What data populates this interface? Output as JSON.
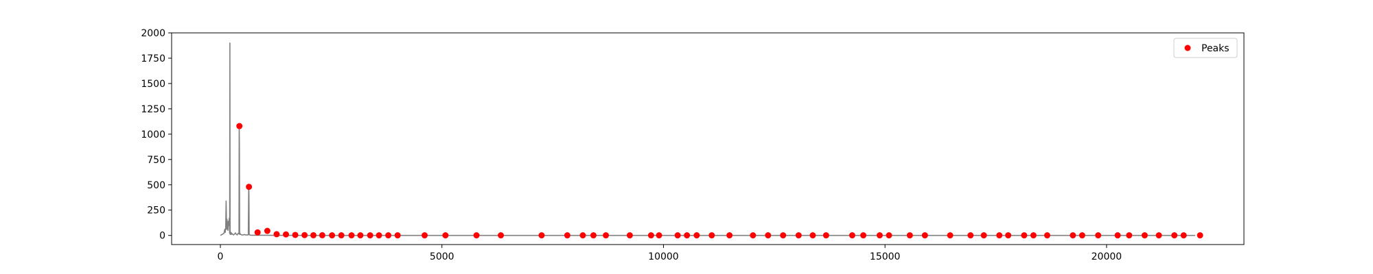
{
  "chart_data": {
    "type": "line",
    "xlim": [
      -1100,
      23100
    ],
    "ylim": [
      -90,
      2000
    ],
    "x_ticks": [
      0,
      5000,
      10000,
      15000,
      20000
    ],
    "y_ticks": [
      0,
      250,
      500,
      750,
      1000,
      1250,
      1500,
      1750,
      2000
    ],
    "grid": false,
    "legend_position": "top-right",
    "series": [
      {
        "kind": "line",
        "color": "#808080",
        "x": [
          0,
          40,
          80,
          100,
          110,
          120,
          130,
          140,
          150,
          160,
          170,
          180,
          190,
          200,
          210,
          215,
          220,
          225,
          230,
          240,
          250,
          260,
          270,
          280,
          300,
          320,
          340,
          360,
          380,
          400,
          420,
          425,
          430,
          435,
          440,
          445,
          450,
          460,
          480,
          500,
          520,
          540,
          560,
          580,
          600,
          630,
          640,
          645,
          650,
          655,
          660,
          680,
          700,
          800,
          1000,
          1200,
          1500,
          2000,
          4000,
          8000,
          12000,
          16000,
          20000,
          22000
        ],
        "y": [
          0,
          10,
          20,
          60,
          30,
          80,
          340,
          60,
          160,
          90,
          50,
          140,
          100,
          170,
          20,
          1900,
          20,
          10,
          20,
          30,
          10,
          20,
          15,
          10,
          5,
          15,
          25,
          10,
          5,
          20,
          15,
          1080,
          900,
          30,
          10,
          20,
          15,
          10,
          5,
          5,
          5,
          10,
          5,
          5,
          5,
          5,
          480,
          400,
          20,
          10,
          5,
          3,
          2,
          2,
          2,
          1,
          1,
          0,
          0,
          0,
          0,
          0,
          0,
          0
        ]
      },
      {
        "kind": "scatter",
        "name": "Peaks",
        "color": "#ff0000",
        "x": [
          430,
          645,
          840,
          1060,
          1270,
          1480,
          1690,
          1900,
          2100,
          2300,
          2520,
          2730,
          2960,
          3160,
          3380,
          3580,
          3790,
          4000,
          4610,
          5080,
          5780,
          6330,
          7250,
          7830,
          8180,
          8420,
          8700,
          9240,
          9720,
          9900,
          10320,
          10530,
          10750,
          11090,
          11490,
          12020,
          12360,
          12700,
          13050,
          13370,
          13670,
          14260,
          14510,
          14880,
          15090,
          15560,
          15900,
          16470,
          16930,
          17230,
          17580,
          17780,
          18140,
          18350,
          18660,
          19240,
          19450,
          19810,
          20250,
          20510,
          20860,
          21180,
          21530,
          21740,
          22110
        ],
        "y": [
          1080,
          480,
          30,
          45,
          12,
          10,
          5,
          3,
          2,
          2,
          1,
          1,
          1,
          1,
          1,
          1,
          1,
          1,
          1,
          1,
          1,
          1,
          1,
          1,
          1,
          1,
          1,
          1,
          1,
          1,
          1,
          1,
          1,
          1,
          1,
          1,
          1,
          1,
          1,
          1,
          1,
          1,
          1,
          1,
          1,
          1,
          1,
          1,
          1,
          1,
          1,
          1,
          1,
          1,
          1,
          1,
          1,
          1,
          1,
          1,
          1,
          1,
          1,
          1,
          1
        ]
      }
    ],
    "legend": [
      "Peaks"
    ]
  }
}
